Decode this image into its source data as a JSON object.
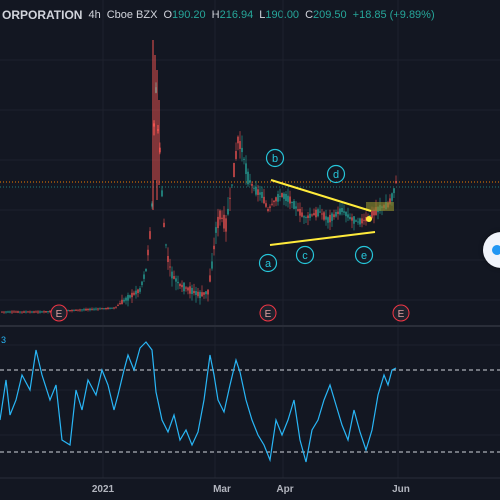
{
  "legend": {
    "symbol": "ORPORATION",
    "interval": "4h",
    "exchange": "Cboe BZX",
    "open_label": "O",
    "open": "190.20",
    "high_label": "H",
    "high": "216.94",
    "low_label": "L",
    "low": "190.00",
    "close_label": "C",
    "close": "209.50",
    "change": "+18.85 (+9.89%)"
  },
  "indicator_label": "3",
  "wave_labels": [
    "a",
    "b",
    "c",
    "d",
    "e"
  ],
  "event_label": "E",
  "time_axis": [
    "2021",
    "Mar",
    "Apr",
    "Jun"
  ],
  "colors": {
    "bg": "#131722",
    "up": "#26a69a",
    "down": "#ef5350",
    "wave": "#26c6da",
    "trend": "#ffeb3b",
    "osc": "#29b6f6",
    "event": "#f23645"
  },
  "icons": {
    "scroll_button": "scroll-right-icon"
  }
}
